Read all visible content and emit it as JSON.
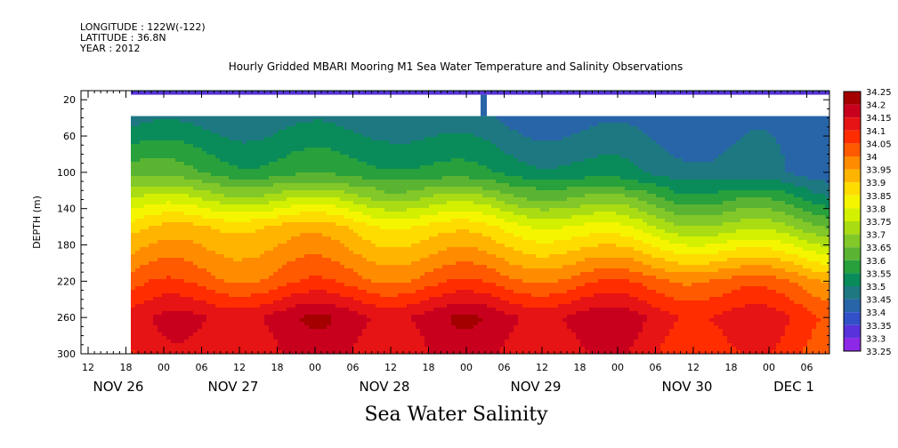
{
  "header": {
    "longitude": "LONGITUDE : 122W(-122)",
    "latitude": "LATITUDE : 36.8N",
    "year": "YEAR : 2012"
  },
  "title": "Hourly Gridded MBARI Mooring M1 Sea Water Temperature and Salinity Observations",
  "bottom_title": "Sea Water Salinity",
  "chart_data": {
    "type": "heatmap",
    "title": "Hourly Gridded MBARI Mooring M1 Sea Water Temperature and Salinity Observations",
    "xlabel": "",
    "ylabel": "DEPTH (m)",
    "variable": "Sea Water Salinity",
    "y_axis": {
      "range": [
        300,
        10
      ],
      "inverted": true,
      "ticks": [
        20,
        60,
        100,
        140,
        180,
        220,
        260,
        300
      ]
    },
    "x_axis": {
      "range_hours_labels": [
        "NOV 26 12",
        "DEC 1 09"
      ],
      "hour_ticks": [
        "12",
        "18",
        "00",
        "06",
        "12",
        "18",
        "00",
        "06",
        "12",
        "18",
        "00",
        "06",
        "12",
        "18",
        "00",
        "06",
        "12",
        "18",
        "00",
        "06",
        "12",
        "18",
        "00",
        "06"
      ],
      "day_labels": [
        "NOV 26",
        "NOV 27",
        "NOV 28",
        "NOV 29",
        "NOV 30",
        "DEC  1"
      ]
    },
    "color_scale": {
      "levels": [
        "34.25",
        "34.2",
        "34.15",
        "34.1",
        "34.05",
        "34",
        "33.95",
        "33.9",
        "33.85",
        "33.8",
        "33.75",
        "33.7",
        "33.65",
        "33.6",
        "33.55",
        "33.5",
        "33.45",
        "33.4",
        "33.35",
        "33.3",
        "33.25"
      ],
      "colors": [
        "#a40000",
        "#c8001e",
        "#e61414",
        "#ff2d00",
        "#ff5a00",
        "#ff8c00",
        "#ffb400",
        "#ffdc00",
        "#f5f500",
        "#d2f000",
        "#aadc14",
        "#82c828",
        "#5ab432",
        "#28a03c",
        "#0a8c5a",
        "#1e7882",
        "#2864a8",
        "#3250c8",
        "#5a32dc",
        "#8c28e6",
        "#c814ff"
      ]
    },
    "profiles": [
      {
        "day": "NOV 26 18",
        "surface": "33.45",
        "depth_40": "33.5",
        "depth_100": "33.65",
        "depth_160": "33.9",
        "depth_220": "34.05",
        "depth_260": "34.15"
      },
      {
        "day": "NOV 27 12",
        "surface": "33.45",
        "depth_40": "33.5",
        "depth_100": "33.6",
        "depth_160": "33.95",
        "depth_220": "34.05",
        "depth_260": "34.2"
      },
      {
        "day": "NOV 28 12",
        "surface": "33.45",
        "depth_40": "33.5",
        "depth_100": "33.6",
        "depth_160": "33.9",
        "depth_220": "34.05",
        "depth_260": "34.2"
      },
      {
        "day": "NOV 29 12",
        "surface": "33.45",
        "depth_40": "33.45",
        "depth_100": "33.55",
        "depth_160": "33.85",
        "depth_220": "34.05",
        "depth_260": "34.2"
      },
      {
        "day": "NOV 30 12",
        "surface": "33.45",
        "depth_40": "33.45",
        "depth_100": "33.5",
        "depth_160": "33.75",
        "depth_220": "34.05",
        "depth_260": "34.15"
      },
      {
        "day": "DEC 1 06",
        "surface": "33.45",
        "depth_40": "33.45",
        "depth_100": "33.45",
        "depth_160": "33.7",
        "depth_220": "34.0",
        "depth_260": "34.1"
      }
    ]
  }
}
